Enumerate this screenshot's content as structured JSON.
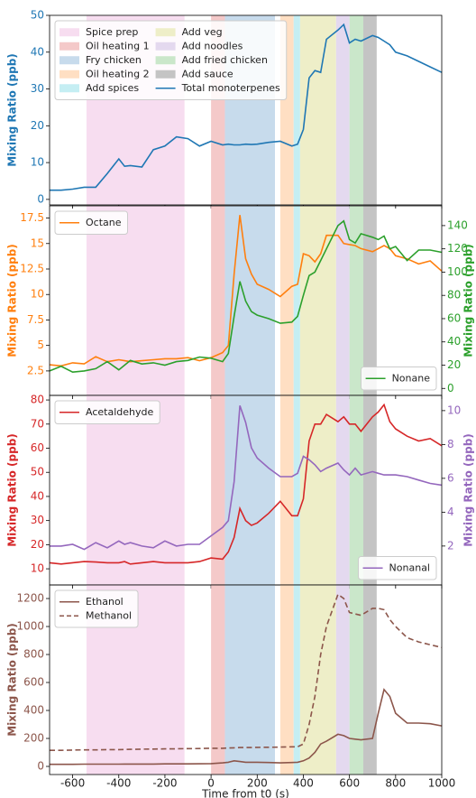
{
  "chart_data": [
    {
      "type": "line",
      "regions": [
        {
          "name": "Spice prep",
          "color": "#f7ddf0",
          "start": -540,
          "end": -115
        },
        {
          "name": "Oil heating 1",
          "color": "#f4c9c9",
          "start": 0,
          "end": 60
        },
        {
          "name": "Fry chicken",
          "color": "#c7dbec",
          "start": 60,
          "end": 277
        },
        {
          "name": "Oil heating 2",
          "color": "#ffdfc3",
          "start": 300,
          "end": 358
        },
        {
          "name": "Add spices",
          "color": "#c5eef3",
          "start": 358,
          "end": 386
        },
        {
          "name": "Add veg",
          "color": "#eeeec8",
          "start": 386,
          "end": 542
        },
        {
          "name": "Add noodles",
          "color": "#e4d9ef",
          "start": 542,
          "end": 600
        },
        {
          "name": "Add fried chicken",
          "color": "#cae7ca",
          "start": 600,
          "end": 660
        },
        {
          "name": "Add sauce",
          "color": "#c4c4c4",
          "start": 660,
          "end": 718
        }
      ],
      "x": [
        -700,
        -650,
        -600,
        -550,
        -500,
        -450,
        -400,
        -375,
        -350,
        -300,
        -250,
        -200,
        -150,
        -100,
        -50,
        0,
        50,
        75,
        100,
        125,
        150,
        175,
        200,
        250,
        300,
        350,
        375,
        400,
        425,
        450,
        475,
        500,
        550,
        575,
        600,
        625,
        650,
        700,
        725,
        750,
        775,
        800,
        850,
        900,
        950,
        1000
      ],
      "xlim": [
        -700,
        1000
      ],
      "ylabel": "Mixing Ratio (ppb)",
      "ylim": [
        -1.5,
        50
      ],
      "yticks": [
        0,
        10,
        20,
        30,
        40,
        50
      ],
      "series": [
        {
          "name": "Total monoterpenes",
          "color": "#1f77b4",
          "values": [
            2.5,
            2.5,
            2.8,
            3.3,
            3.3,
            7,
            11,
            9,
            9.2,
            8.8,
            13.5,
            14.5,
            17,
            16.5,
            14.5,
            15.8,
            14.8,
            15,
            14.8,
            14.8,
            15,
            14.9,
            15,
            15.5,
            15.8,
            14.5,
            15,
            19,
            33,
            35,
            34.5,
            43.5,
            46,
            47.5,
            42.5,
            43.5,
            43,
            44.5,
            44,
            43,
            42,
            40,
            39,
            37.5,
            36,
            34.5
          ]
        }
      ],
      "legend": "upper left",
      "legend_columns": 2,
      "grid": false
    },
    {
      "type": "line",
      "x": [
        -700,
        -650,
        -600,
        -550,
        -500,
        -450,
        -400,
        -375,
        -350,
        -300,
        -250,
        -200,
        -150,
        -100,
        -50,
        0,
        50,
        75,
        100,
        125,
        150,
        175,
        200,
        250,
        300,
        350,
        375,
        400,
        425,
        450,
        475,
        500,
        550,
        575,
        600,
        625,
        650,
        700,
        725,
        750,
        775,
        800,
        850,
        900,
        950,
        1000
      ],
      "xlim": [
        -700,
        1000
      ],
      "ylabel": "Mixing Ratio (ppb)",
      "y2label": "Mixing Ratio (ppb)",
      "ylim": [
        0.1,
        18.7
      ],
      "yticks": [
        2.5,
        5.0,
        7.5,
        10.0,
        12.5,
        15.0,
        17.5
      ],
      "y2lim": [
        -6,
        157
      ],
      "y2ticks": [
        0,
        20,
        40,
        60,
        80,
        100,
        120,
        140
      ],
      "series": [
        {
          "name": "Octane",
          "color": "#ff7f0e",
          "values": [
            3.1,
            3,
            3.3,
            3.2,
            3.9,
            3.4,
            3.6,
            3.5,
            3.4,
            3.5,
            3.6,
            3.7,
            3.7,
            3.8,
            3.5,
            3.8,
            4.3,
            5,
            12,
            17.8,
            13.5,
            12,
            11,
            10.5,
            9.8,
            10.8,
            11,
            14,
            13.8,
            13.2,
            14,
            15.8,
            15.8,
            15,
            14.9,
            14.8,
            14.5,
            14.2,
            14.5,
            14.8,
            14.5,
            13.8,
            13.5,
            13,
            13.3,
            12.3
          ]
        },
        {
          "name": "Nonane",
          "color": "#2ca02c",
          "axis": "y2",
          "values": [
            15,
            19,
            14,
            15,
            17,
            23,
            16,
            20,
            24,
            21,
            22,
            20,
            23,
            24,
            27,
            26,
            23,
            30,
            62,
            92,
            75,
            66,
            63,
            60,
            56,
            57,
            62,
            80,
            97,
            100,
            110,
            120,
            140,
            144,
            128,
            125,
            133,
            130,
            128,
            131,
            120,
            122,
            110,
            119,
            119,
            117
          ]
        }
      ],
      "legend": "upper left",
      "legend2": "lower right",
      "grid": false
    },
    {
      "type": "line",
      "x": [
        -700,
        -650,
        -600,
        -550,
        -500,
        -450,
        -400,
        -375,
        -350,
        -300,
        -250,
        -200,
        -150,
        -100,
        -50,
        0,
        50,
        75,
        100,
        125,
        150,
        175,
        200,
        250,
        300,
        350,
        375,
        400,
        425,
        450,
        475,
        500,
        550,
        575,
        600,
        625,
        650,
        700,
        725,
        750,
        775,
        800,
        850,
        900,
        950,
        1000
      ],
      "xlim": [
        -700,
        1000
      ],
      "ylabel": "Mixing Ratio (ppb)",
      "y2label": "Mixing Ratio (ppb)",
      "ylim": [
        3.3,
        81.9
      ],
      "yticks": [
        10,
        20,
        30,
        40,
        50,
        60,
        70,
        80
      ],
      "y2lim": [
        -0.3,
        10.9
      ],
      "y2ticks": [
        2,
        4,
        6,
        8,
        10
      ],
      "series": [
        {
          "name": "Acetaldehyde",
          "color": "#d62728",
          "values": [
            12.5,
            12,
            12.5,
            13,
            12.8,
            12.5,
            12.5,
            13,
            12,
            12.5,
            13,
            12.5,
            12.5,
            12.5,
            13,
            14.5,
            14,
            17,
            23,
            35,
            30,
            28,
            29,
            33,
            38,
            32,
            32,
            39,
            63,
            70,
            70,
            74,
            71,
            73,
            70,
            70,
            67,
            73,
            75,
            78,
            71,
            68,
            65,
            63,
            64,
            61
          ]
        },
        {
          "name": "Nonanal",
          "color": "#9467bd",
          "axis": "y2",
          "values": [
            2,
            2,
            2.1,
            1.8,
            2.2,
            1.9,
            2.3,
            2.1,
            2.2,
            2,
            1.9,
            2.3,
            2,
            2.1,
            2.1,
            2.6,
            3.1,
            3.5,
            5.8,
            10.3,
            9.3,
            7.8,
            7.2,
            6.6,
            6.1,
            6.1,
            6.3,
            7.3,
            7.1,
            6.8,
            6.4,
            6.6,
            6.9,
            6.5,
            6.2,
            6.6,
            6.2,
            6.4,
            6.3,
            6.2,
            6.2,
            6.2,
            6.1,
            5.9,
            5.7,
            5.6
          ]
        }
      ],
      "legend": "upper left",
      "legend2": "lower right",
      "grid": false
    },
    {
      "type": "line",
      "x": [
        -700,
        -650,
        -600,
        -550,
        -500,
        -450,
        -400,
        -375,
        -350,
        -300,
        -250,
        -200,
        -150,
        -100,
        -50,
        0,
        50,
        75,
        100,
        125,
        150,
        175,
        200,
        250,
        300,
        350,
        375,
        400,
        425,
        450,
        475,
        500,
        550,
        575,
        600,
        625,
        650,
        700,
        725,
        750,
        775,
        800,
        850,
        900,
        950,
        1000
      ],
      "xlim": [
        -700,
        1000
      ],
      "xticks": [
        -600,
        -400,
        -200,
        0,
        200,
        400,
        600,
        800,
        1000
      ],
      "xlabel": "Time from t0 (s)",
      "ylabel": "Mixing Ratio (ppb)",
      "ylim": [
        -58,
        1297
      ],
      "yticks": [
        0,
        200,
        400,
        600,
        800,
        1000,
        1200
      ],
      "series": [
        {
          "name": "Ethanol",
          "color": "#8c564b",
          "values": [
            15,
            15,
            15,
            16,
            16,
            16,
            16,
            17,
            17,
            17,
            17,
            18,
            18,
            18,
            19,
            20,
            25,
            30,
            40,
            35,
            30,
            30,
            30,
            28,
            25,
            28,
            30,
            40,
            60,
            100,
            160,
            180,
            230,
            220,
            200,
            195,
            190,
            200,
            380,
            550,
            500,
            380,
            310,
            310,
            305,
            290
          ]
        },
        {
          "name": "Methanol",
          "color": "#8c564b",
          "linestyle": "dashed",
          "values": [
            115,
            115,
            117,
            118,
            118,
            120,
            120,
            121,
            122,
            123,
            124,
            125,
            126,
            127,
            128,
            130,
            130,
            132,
            133,
            135,
            135,
            135,
            136,
            137,
            138,
            140,
            140,
            160,
            300,
            500,
            800,
            1000,
            1230,
            1200,
            1100,
            1090,
            1080,
            1130,
            1130,
            1120,
            1050,
            1000,
            920,
            890,
            870,
            850
          ]
        }
      ],
      "legend": "upper left",
      "grid": false
    }
  ]
}
